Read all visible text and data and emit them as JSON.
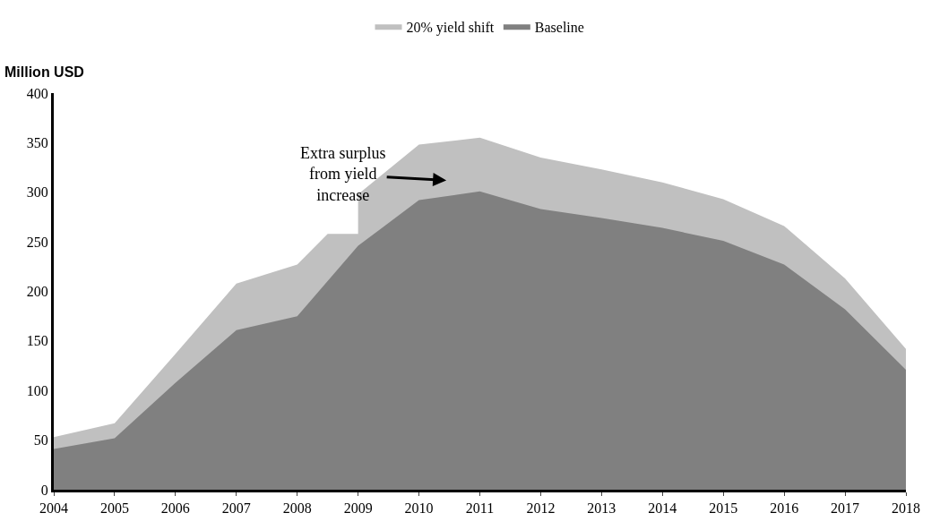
{
  "chart_data": {
    "type": "area",
    "ylabel": "Million USD",
    "xlim": [
      2004,
      2018
    ],
    "xticks": [
      2004,
      2005,
      2006,
      2007,
      2008,
      2009,
      2010,
      2011,
      2012,
      2013,
      2014,
      2015,
      2016,
      2017,
      2018
    ],
    "ylim": [
      0,
      400
    ],
    "yticks": [
      0,
      50,
      100,
      150,
      200,
      250,
      300,
      350,
      400
    ],
    "legend": "top",
    "annotations": [
      "Extra surplus\nfrom yield\nincrease"
    ],
    "series": [
      {
        "name": "20% yield shift",
        "color": "#c0c0c0",
        "x": [
          2004,
          2005,
          2006,
          2007,
          2008,
          2008.5,
          2009,
          2009,
          2010,
          2011,
          2012,
          2013,
          2014,
          2015,
          2016,
          2017,
          2018
        ],
        "values": [
          53,
          67,
          137,
          208,
          227,
          258,
          258,
          298,
          348,
          355,
          335,
          323,
          310,
          293,
          266,
          213,
          142
        ]
      },
      {
        "name": "Baseline",
        "color": "#808080",
        "x": [
          2004,
          2005,
          2006,
          2007,
          2008,
          2009,
          2010,
          2011,
          2012,
          2013,
          2014,
          2015,
          2016,
          2017,
          2018
        ],
        "values": [
          41,
          52,
          108,
          161,
          175,
          246,
          292,
          301,
          283,
          274,
          264,
          251,
          227,
          182,
          121
        ]
      }
    ]
  }
}
